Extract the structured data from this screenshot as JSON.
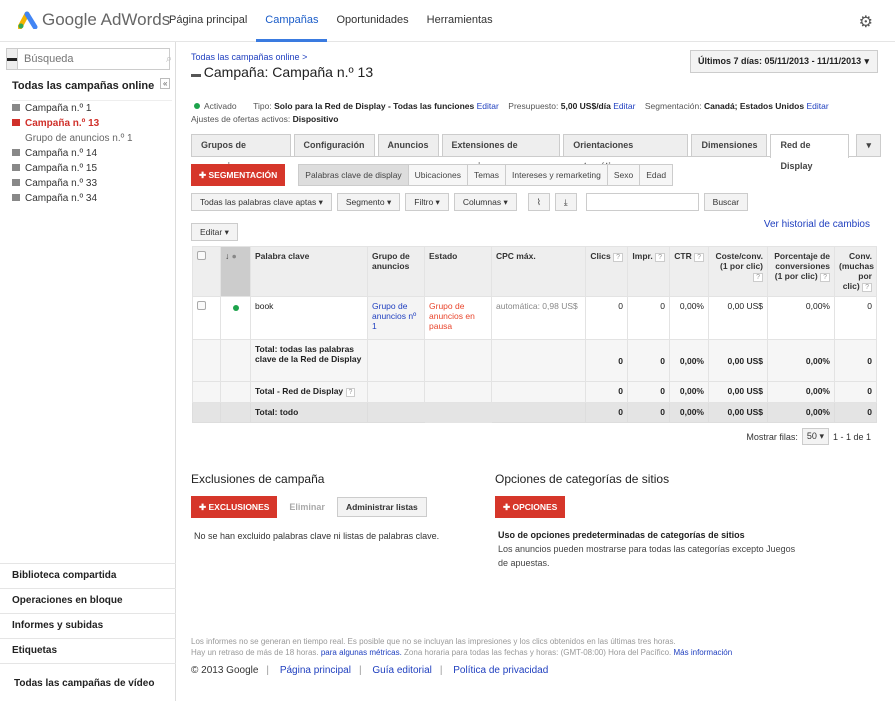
{
  "header": {
    "brand": "Google AdWords",
    "nav": [
      "Página principal",
      "Campañas",
      "Oportunidades",
      "Herramientas"
    ],
    "active_nav": 1,
    "icons": {
      "settings": "gear-icon"
    }
  },
  "sidebar": {
    "search_placeholder": "Búsqueda",
    "all_label": "Todas las campañas online",
    "collapse_label": "«",
    "tree": [
      {
        "label": "Campaña n.º 1"
      },
      {
        "label": "Campaña n.º 13",
        "selected": true
      },
      {
        "label": "Grupo de anuncios n.º 1",
        "sub": true
      },
      {
        "label": "Campaña n.º 14"
      },
      {
        "label": "Campaña n.º 15"
      },
      {
        "label": "Campaña n.º 33"
      },
      {
        "label": "Campaña n.º 34"
      }
    ],
    "bottom": [
      "Biblioteca compartida",
      "Operaciones en bloque",
      "Informes y subidas",
      "Etiquetas",
      "Todas las campañas de vídeo"
    ]
  },
  "main": {
    "breadcrumb": "Todas las campañas online >",
    "title": "Campaña: Campaña n.º 13",
    "date_range": "Últimos 7 días: 05/11/2013 - 11/11/2013",
    "status": "Activado",
    "type_label": "Tipo:",
    "type_value": "Solo para la Red de Display - Todas las funciones",
    "edit": "Editar",
    "budget_label": "Presupuesto:",
    "budget_value": "5,00 US$/día",
    "targeting_label": "Segmentación:",
    "targeting_value": "Canadá; Estados Unidos",
    "bid_adj_label": "Ajustes de ofertas activos:",
    "bid_adj_value": "Dispositivo",
    "tabs": [
      "Grupos de anuncios",
      "Configuración",
      "Anuncios",
      "Extensiones de anuncios",
      "Orientaciones automáticas",
      "Dimensiones",
      "Red de Display"
    ],
    "active_tab": 6,
    "segment_button": "SEGMENTACIÓN",
    "subtabs": [
      "Palabras clave de display",
      "Ubicaciones",
      "Temas",
      "Intereses y remarketing",
      "Sexo",
      "Edad"
    ],
    "filters": [
      "Todas las palabras clave aptas",
      "Segmento",
      "Filtro",
      "Columnas"
    ],
    "search_button": "Buscar",
    "history_link": "Ver historial de cambios",
    "edit_button": "Editar",
    "table": {
      "columns": [
        "Palabra clave",
        "Grupo de anuncios",
        "Estado",
        "CPC máx.",
        "Clics",
        "Impr.",
        "CTR",
        "Coste/conv. (1 por clic)",
        "Porcentaje de conversiones (1 por clic)",
        "Conv. (muchas por clic)"
      ],
      "rows": [
        {
          "keyword": "book",
          "group": "Grupo de anuncios nº 1",
          "status": "Grupo de anuncios en pausa",
          "cpc": "automática: 0,98 US$",
          "clicks": "0",
          "impr": "0",
          "ctr": "0,00%",
          "cost_conv": "0,00 US$",
          "conv_rate": "0,00%",
          "conv": "0"
        }
      ],
      "totals": [
        {
          "label": "Total: todas las palabras clave de la Red de Display",
          "clicks": "0",
          "impr": "0",
          "ctr": "0,00%",
          "cost_conv": "0,00 US$",
          "conv_rate": "0,00%",
          "conv": "0"
        },
        {
          "label": "Total - Red de Display",
          "clicks": "0",
          "impr": "0",
          "ctr": "0,00%",
          "cost_conv": "0,00 US$",
          "conv_rate": "0,00%",
          "conv": "0"
        },
        {
          "label": "Total: todo",
          "clicks": "0",
          "impr": "0",
          "ctr": "0,00%",
          "cost_conv": "0,00 US$",
          "conv_rate": "0,00%",
          "conv": "0"
        }
      ]
    },
    "pager": {
      "label": "Mostrar filas:",
      "value": "50",
      "range": "1 - 1 de 1"
    },
    "exclusions": {
      "title": "Exclusiones de campaña",
      "button": "EXCLUSIONES",
      "remove": "Eliminar",
      "manage": "Administrar listas",
      "empty": "No se han excluido palabras clave ni listas de palabras clave."
    },
    "site_options": {
      "title": "Opciones de categorías de sitios",
      "button": "OPCIONES",
      "heading": "Uso de opciones predeterminadas de categorías de sitios",
      "text": "Los anuncios pueden mostrarse para todas las categorías excepto Juegos de apuestas."
    }
  },
  "footer": {
    "note1": "Los informes no se generan en tiempo real. Es posible que no se incluyan las impresiones y los clics obtenidos en las últimas tres horas.",
    "note2a": "Hay un retraso de más de 18 horas.",
    "note2_link": "para algunas métricas.",
    "note2b": "Zona horaria para todas las fechas y horas: (GMT-08:00) Hora del Pacífico.",
    "more_info": "Más información",
    "copyright": "© 2013 Google",
    "links": [
      "Página principal",
      "Guía editorial",
      "Política de privacidad"
    ]
  },
  "colors": {
    "accent_red": "#d6362a",
    "link": "#1f3fbf",
    "active": "#1da34b"
  }
}
